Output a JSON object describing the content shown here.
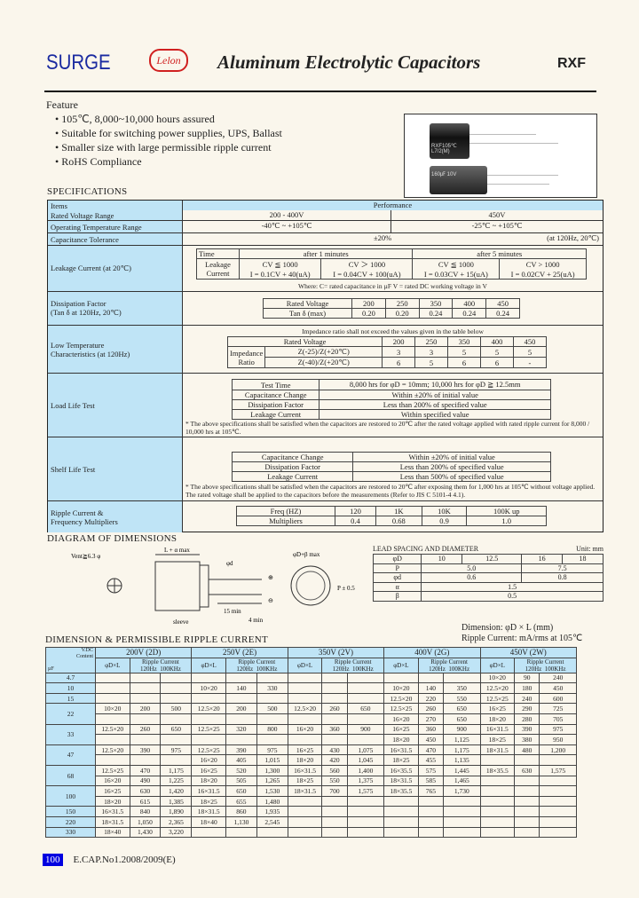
{
  "header": {
    "brand": "SURGE",
    "brand_logo_text": "Lelon",
    "title": "Aluminum Electrolytic Capacitors",
    "series": "RXF"
  },
  "feature": {
    "heading": "Feature",
    "items": [
      "105℃, 8,000~10,000 hours assured",
      "Suitable for switching power supplies, UPS, Ballast",
      "Smaller size with large permissible ripple current",
      "RoHS Compliance"
    ]
  },
  "photo": {
    "label_top": "RXF105℃ L7/2(M)",
    "label_bottom": "160㎌ 10V"
  },
  "specifications": {
    "heading": "SPECIFICATIONS",
    "items_label": "Items",
    "performance_label": "Performance",
    "rated_voltage": {
      "label": "Rated Voltage Range",
      "a": "200 - 400V",
      "b": "450V"
    },
    "op_temp": {
      "label": "Operating Temperature Range",
      "a": "-40℃ ~ +105℃",
      "b": "-25℃ ~ +105℃"
    },
    "cap_tol": {
      "label": "Capacitance Tolerance",
      "value": "±20%",
      "cond": "(at 120Hz, 20℃)"
    },
    "leakage": {
      "label": "Leakage Current (at 20℃)",
      "time": "Time",
      "after1": "after 1 minutes",
      "after5": "after 5 minutes",
      "row_label": "Leakage Current",
      "conds": [
        "CV ≦ 1000",
        "CV ＞ 1000",
        "CV ≦ 1000",
        "CV > 1000"
      ],
      "formulas": [
        "I = 0.1CV + 40(uA)",
        "I = 0.04CV + 100(uA)",
        "I = 0.03CV + 15(uA)",
        "I = 0.02CV + 25(uA)"
      ],
      "note": "Where: C= rated capacitance in µF   V = rated DC working voltage in V"
    },
    "dissipation": {
      "label1": "Dissipation Factor",
      "label2": "(Tan δ at 120Hz, 20℃)",
      "row1": "Rated Voltage",
      "row2": "Tan δ (max)",
      "voltages": [
        "200",
        "250",
        "350",
        "400",
        "450"
      ],
      "values": [
        "0.20",
        "0.20",
        "0.24",
        "0.24",
        "0.24"
      ]
    },
    "low_temp": {
      "label1": "Low Temperature",
      "label2": "Characteristics (at 120Hz)",
      "intro": "Impedance ratio shall not exceed the values given in the table below",
      "rated": "Rated Voltage",
      "ratio_label": "Impedance Ratio",
      "voltages": [
        "200",
        "250",
        "350",
        "400",
        "450"
      ],
      "rows": [
        {
          "cond": "Z(-25)/Z(+20℃)",
          "values": [
            "3",
            "3",
            "5",
            "5",
            "5"
          ]
        },
        {
          "cond": "Z(-40)/Z(+20℃)",
          "values": [
            "6",
            "5",
            "6",
            "6",
            "-"
          ]
        }
      ]
    },
    "load_life": {
      "label": "Load Life Test",
      "rows": [
        [
          "Test Time",
          "8,000 hrs for  φD = 10mm; 10,000 hrs for  φD ≧ 12.5mm"
        ],
        [
          "Capacitance Change",
          "Within ±20% of initial value"
        ],
        [
          "Dissipation Factor",
          "Less than 200% of specified value"
        ],
        [
          "Leakage Current",
          "Within specified value"
        ]
      ],
      "note": "* The above specifications shall be satisfied when the capacitors are restored to 20℃ after the rated voltage applied with rated ripple current for 8,000 / 10,000 hrs at 105℃."
    },
    "shelf_life": {
      "label": "Shelf Life Test",
      "rows": [
        [
          "Capacitance Change",
          "Within ±20% of initial value"
        ],
        [
          "Dissipation Factor",
          "Less than 200% of specified value"
        ],
        [
          "Leakage Current",
          "Less than 500% of specified value"
        ]
      ],
      "note": "* The above specifications shall be satisfied when the capacitors are restored to 20℃ after exposing them for 1,000 hrs at 105℃ without voltage applied. The rated voltage shall be applied to the capacitors before the measurements (Refer to JIS C 5101-4 4.1)."
    },
    "ripple": {
      "label1": "Ripple Current &",
      "label2": "Frequency Multipliers",
      "freq_label": "Freq (HZ)",
      "mult_label": "Multipliers",
      "freqs": [
        "120",
        "1K",
        "10K",
        "100K up"
      ],
      "mults": [
        "0.4",
        "0.68",
        "0.9",
        "1.0"
      ]
    }
  },
  "diagram": {
    "heading": "DIAGRAM OF DIMENSIONS",
    "vent": "Vent≧6.3 φ",
    "length": "L + α max",
    "dia": "φD+β max",
    "lead_d": "φd",
    "p": "P ± 0.5",
    "min15": "15 min",
    "min4": "4 min",
    "sleeve": "sleeve"
  },
  "lead_spacing": {
    "title": "LEAD SPACING AND DIAMETER",
    "unit": "Unit: mm",
    "head": "φD",
    "diameters": [
      "10",
      "12.5",
      "16",
      "18"
    ],
    "p_label": "P",
    "p": [
      "5.0",
      "7.5"
    ],
    "d_label": "φd",
    "d": [
      "0.6",
      "0.8"
    ],
    "alpha_label": "α",
    "alpha": "1.5",
    "beta_label": "β",
    "beta": "0.5"
  },
  "dimension_table": {
    "heading": "DIMENSION & PERMISSIBLE RIPPLE CURRENT",
    "dim_note": "Dimension:   φD × L (mm)",
    "ripple_note": "Ripple Current: mA/rms at 105℃",
    "corner": {
      "vdc": "V.DC",
      "item": "Content",
      "cap": "µF"
    },
    "col_dim": "φD×L",
    "col_ripple": "Ripple Current",
    "col_120": "120Hz",
    "col_100k": "100KHz",
    "voltages": [
      "200V (2D)",
      "250V (2E)",
      "350V (2V)",
      "400V (2G)",
      "450V (2W)"
    ],
    "groups": [
      {
        "cap": "4.7",
        "rows": [
          [
            null,
            null,
            null,
            null,
            [
              "10×20",
              "90",
              "240"
            ]
          ]
        ]
      },
      {
        "cap": "10",
        "rows": [
          [
            null,
            [
              "10×20",
              "140",
              "330"
            ],
            null,
            [
              "10×20",
              "140",
              "350"
            ],
            [
              "12.5×20",
              "180",
              "450"
            ]
          ]
        ]
      },
      {
        "cap": "15",
        "rows": [
          [
            null,
            null,
            null,
            [
              "12.5×20",
              "220",
              "550"
            ],
            [
              "12.5×25",
              "240",
              "600"
            ]
          ]
        ]
      },
      {
        "cap": "22",
        "rows": [
          [
            [
              "10×20",
              "200",
              "500"
            ],
            [
              "12.5×20",
              "200",
              "500"
            ],
            [
              "12.5×20",
              "260",
              "650"
            ],
            [
              "12.5×25",
              "260",
              "650"
            ],
            [
              "16×25",
              "290",
              "725"
            ]
          ],
          [
            null,
            null,
            null,
            [
              "16×20",
              "270",
              "650"
            ],
            [
              "18×20",
              "280",
              "705"
            ]
          ]
        ]
      },
      {
        "cap": "33",
        "rows": [
          [
            [
              "12.5×20",
              "260",
              "650"
            ],
            [
              "12.5×25",
              "320",
              "800"
            ],
            [
              "16×20",
              "360",
              "900"
            ],
            [
              "16×25",
              "360",
              "900"
            ],
            [
              "16×31.5",
              "390",
              "975"
            ]
          ],
          [
            null,
            null,
            null,
            [
              "18×20",
              "450",
              "1,125"
            ],
            [
              "18×25",
              "380",
              "950"
            ]
          ]
        ]
      },
      {
        "cap": "47",
        "rows": [
          [
            [
              "12.5×20",
              "390",
              "975"
            ],
            [
              "12.5×25",
              "390",
              "975"
            ],
            [
              "16×25",
              "430",
              "1,075"
            ],
            [
              "16×31.5",
              "470",
              "1,175"
            ],
            [
              "18×31.5",
              "480",
              "1,200"
            ]
          ],
          [
            null,
            [
              "16×20",
              "405",
              "1,015"
            ],
            [
              "18×20",
              "420",
              "1,045"
            ],
            [
              "18×25",
              "455",
              "1,135"
            ],
            null
          ]
        ]
      },
      {
        "cap": "68",
        "rows": [
          [
            [
              "12.5×25",
              "470",
              "1,175"
            ],
            [
              "16×25",
              "520",
              "1,300"
            ],
            [
              "16×31.5",
              "560",
              "1,400"
            ],
            [
              "16×35.5",
              "575",
              "1,445"
            ],
            [
              "18×35.5",
              "630",
              "1,575"
            ]
          ],
          [
            [
              "16×20",
              "490",
              "1,225"
            ],
            [
              "18×20",
              "505",
              "1,265"
            ],
            [
              "18×25",
              "550",
              "1,375"
            ],
            [
              "18×31.5",
              "585",
              "1,465"
            ],
            null
          ]
        ]
      },
      {
        "cap": "100",
        "rows": [
          [
            [
              "16×25",
              "630",
              "1,420"
            ],
            [
              "16×31.5",
              "650",
              "1,530"
            ],
            [
              "18×31.5",
              "700",
              "1,575"
            ],
            [
              "18×35.5",
              "765",
              "1,730"
            ],
            null
          ],
          [
            [
              "18×20",
              "615",
              "1,385"
            ],
            [
              "18×25",
              "655",
              "1,480"
            ],
            null,
            null,
            null
          ]
        ]
      },
      {
        "cap": "150",
        "rows": [
          [
            [
              "16×31.5",
              "840",
              "1,890"
            ],
            [
              "18×31.5",
              "860",
              "1,935"
            ],
            null,
            null,
            null
          ]
        ]
      },
      {
        "cap": "220",
        "rows": [
          [
            [
              "18×31.5",
              "1,050",
              "2,365"
            ],
            [
              "18×40",
              "1,130",
              "2,545"
            ],
            null,
            null,
            null
          ]
        ]
      },
      {
        "cap": "330",
        "rows": [
          [
            [
              "18×40",
              "1,430",
              "3,220"
            ],
            null,
            null,
            null,
            null
          ]
        ]
      }
    ]
  },
  "footer": {
    "page": "100",
    "catalog": "E.CAP.No1.2008/2009(E)"
  },
  "colors": {
    "background": "#faf6ec",
    "header_blue": "#bfe4f6",
    "page_badge": "#0000e0",
    "brand": "#1a2aa0",
    "lelon_red": "#d02020"
  }
}
